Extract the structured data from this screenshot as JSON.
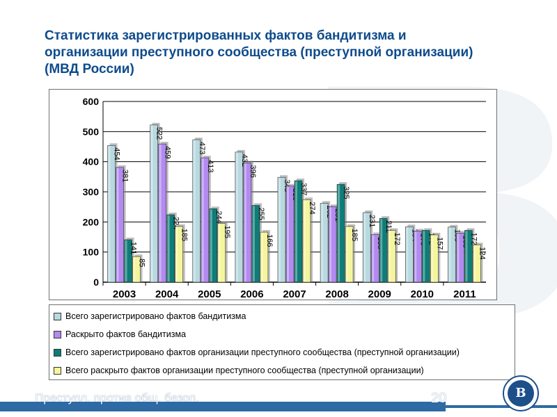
{
  "title": "Статистика зарегистрированных фактов бандитизма и организации преступного сообщества (преступной организации) (МВД России)",
  "footer": {
    "text": "Преступл. против общ. безоп.",
    "page": "20"
  },
  "colors": {
    "series1": "#b7d9df",
    "series2": "#b28af0",
    "series3": "#0d7d78",
    "series4": "#f5f59c",
    "accent": "#0d4b8c"
  },
  "chart_data": {
    "type": "bar",
    "title": "",
    "xlabel": "",
    "ylabel": "",
    "ylim": [
      0,
      600
    ],
    "yticks": [
      0,
      100,
      200,
      300,
      400,
      500,
      600
    ],
    "grid": true,
    "legend_position": "bottom",
    "categories": [
      "2003",
      "2004",
      "2005",
      "2006",
      "2007",
      "2008",
      "2009",
      "2010",
      "2011"
    ],
    "series": [
      {
        "name": "Всего зарегистрировано фактов бандитизма",
        "values": [
          454,
          522,
          473,
          432,
          348,
          262,
          231,
          184,
          183
        ]
      },
      {
        "name": "Раскрыто фактов бандитизма",
        "values": [
          381,
          459,
          413,
          396,
          319,
          251,
          158,
          170,
          163
        ]
      },
      {
        "name": "Всего зарегистрировано фактов организации преступного сообщества (преступной организации)",
        "values": [
          141,
          224,
          244,
          255,
          337,
          325,
          212,
          172,
          172
        ]
      },
      {
        "name": "Всего раскрыто фактов организации преступного сообщества (преступной организации)",
        "values": [
          85,
          185,
          195,
          166,
          274,
          185,
          172,
          157,
          124
        ]
      }
    ]
  }
}
